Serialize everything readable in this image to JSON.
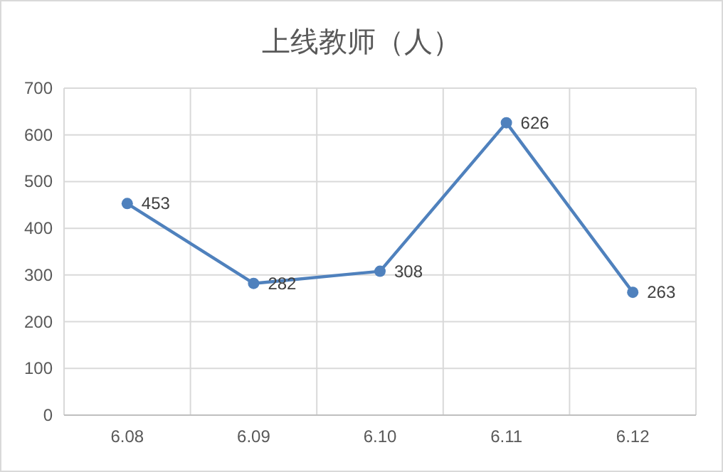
{
  "chart_data": {
    "type": "line",
    "title": "上线教师（人）",
    "categories": [
      "6.08",
      "6.09",
      "6.10",
      "6.11",
      "6.12"
    ],
    "series": [
      {
        "color": "#4f81bd",
        "values": [
          453,
          282,
          308,
          626,
          263
        ]
      }
    ],
    "ylim": [
      0,
      700
    ],
    "yticks": [
      0,
      100,
      200,
      300,
      400,
      500,
      600,
      700
    ],
    "grid": true,
    "marker": "circle",
    "line_style": "solid",
    "data_labels": true
  }
}
